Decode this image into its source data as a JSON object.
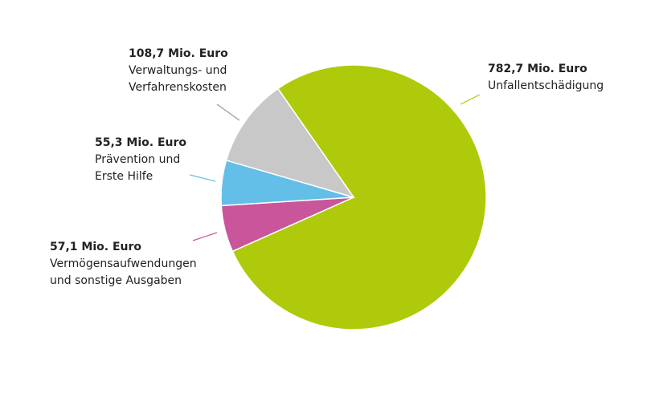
{
  "chart_data": {
    "type": "pie",
    "categories": [
      [
        "Unfallentschädigung"
      ],
      [
        "Vermögensaufwendungen",
        "und sonstige Ausgaben"
      ],
      [
        "Prävention und",
        "Erste Hilfe"
      ],
      [
        "Verwaltungs- und",
        "Verfahrenskosten"
      ]
    ],
    "values": [
      782.7,
      57.1,
      55.3,
      108.7
    ],
    "value_labels": [
      "782,7 Mio. Euro",
      "57,1 Mio. Euro",
      "55,3 Mio. Euro",
      "108,7 Mio. Euro"
    ],
    "colors": [
      "#afca0b",
      "#c9559b",
      "#63bfe8",
      "#c8c8c8"
    ]
  }
}
